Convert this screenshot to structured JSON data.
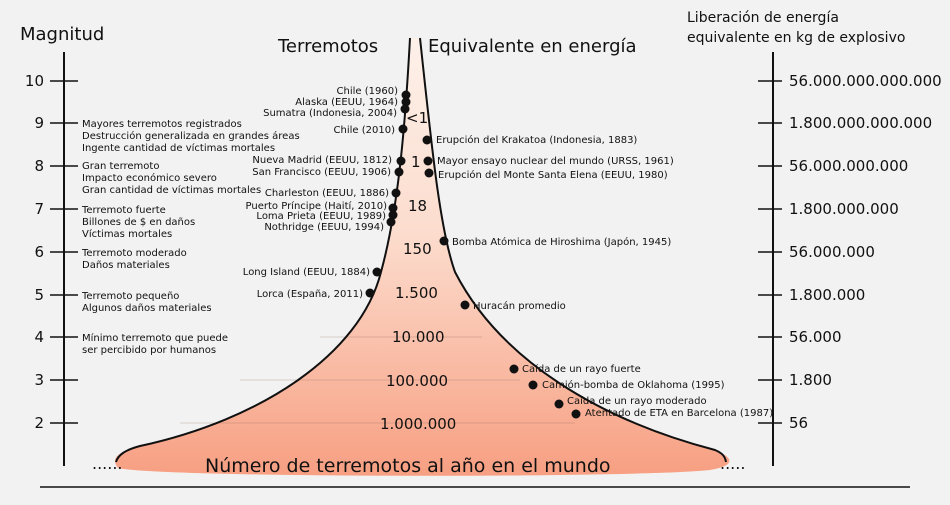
{
  "titles": {
    "magnitude": "Magnitud",
    "earthquakes": "Terremotos",
    "energy_equiv": "Equivalente en energía",
    "energy_release_1": "Liberación de energía",
    "energy_release_2": "equivalente en kg de explosivo",
    "bottom": "Número de terremotos al año en el mundo"
  },
  "magnitudes": [
    "10",
    "9",
    "8",
    "7",
    "6",
    "5",
    "4",
    "3",
    "2"
  ],
  "energy_values": [
    "56.000.000.000.000",
    "1.800.000.000.000",
    "56.000.000.000",
    "1.800.000.000",
    "56.000.000",
    "1.800.000",
    "56.000",
    "1.800",
    "56"
  ],
  "descriptions": {
    "m9": [
      "Mayores terremotos registrados",
      "Destrucción generalizada en grandes áreas",
      "Ingente cantidad de víctimas mortales"
    ],
    "m8": [
      "Gran terremoto",
      "Impacto económico severo",
      "Gran cantidad de víctimas mortales"
    ],
    "m7": [
      "Terremoto fuerte",
      "Billones de $ en daños",
      "Víctimas mortales"
    ],
    "m6": [
      "Terremoto moderado",
      "Daños materiales"
    ],
    "m5": [
      "Terremoto pequeño",
      "Algunos daños materiales"
    ],
    "m4": [
      "Mínimo terremoto que puede",
      "ser percibido por humanos"
    ]
  },
  "counts": [
    "<1",
    "1",
    "18",
    "150",
    "1.500",
    "10.000",
    "100.000",
    "1.000.000"
  ],
  "left_events": [
    "Chile (1960)",
    "Alaska (EEUU, 1964)",
    "Sumatra (Indonesia, 2004)",
    "Chile (2010)",
    "Nueva Madrid (EEUU, 1812)",
    "San Francisco (EEUU, 1906)",
    "Charleston (EEUU, 1886)",
    "Puerto Príncipe (Haití, 2010)",
    "Loma Prieta (EEUU, 1989)",
    "Nothridge (EEUU, 1994)",
    "Long Island (EEUU, 1884)",
    "Lorca (España, 2011)"
  ],
  "right_events": [
    "Erupción del Krakatoa (Indonesia, 1883)",
    "Mayor ensayo nuclear del mundo (URSS, 1961)",
    "Erupción del Monte Santa Elena (EEUU, 1980)",
    "Bomba Atómica de Hiroshima (Japón, 1945)",
    "Huracán promedio",
    "Caída de un rayo fuerte",
    "Camión-bomba de Oklahoma (1995)",
    "Caída de un rayo moderado",
    "Atentado de ETA en Barcelona (1987)"
  ],
  "colors": {
    "fill_top": "#fbe6dc",
    "fill_bottom": "#f7a386",
    "axis": "#111111"
  }
}
